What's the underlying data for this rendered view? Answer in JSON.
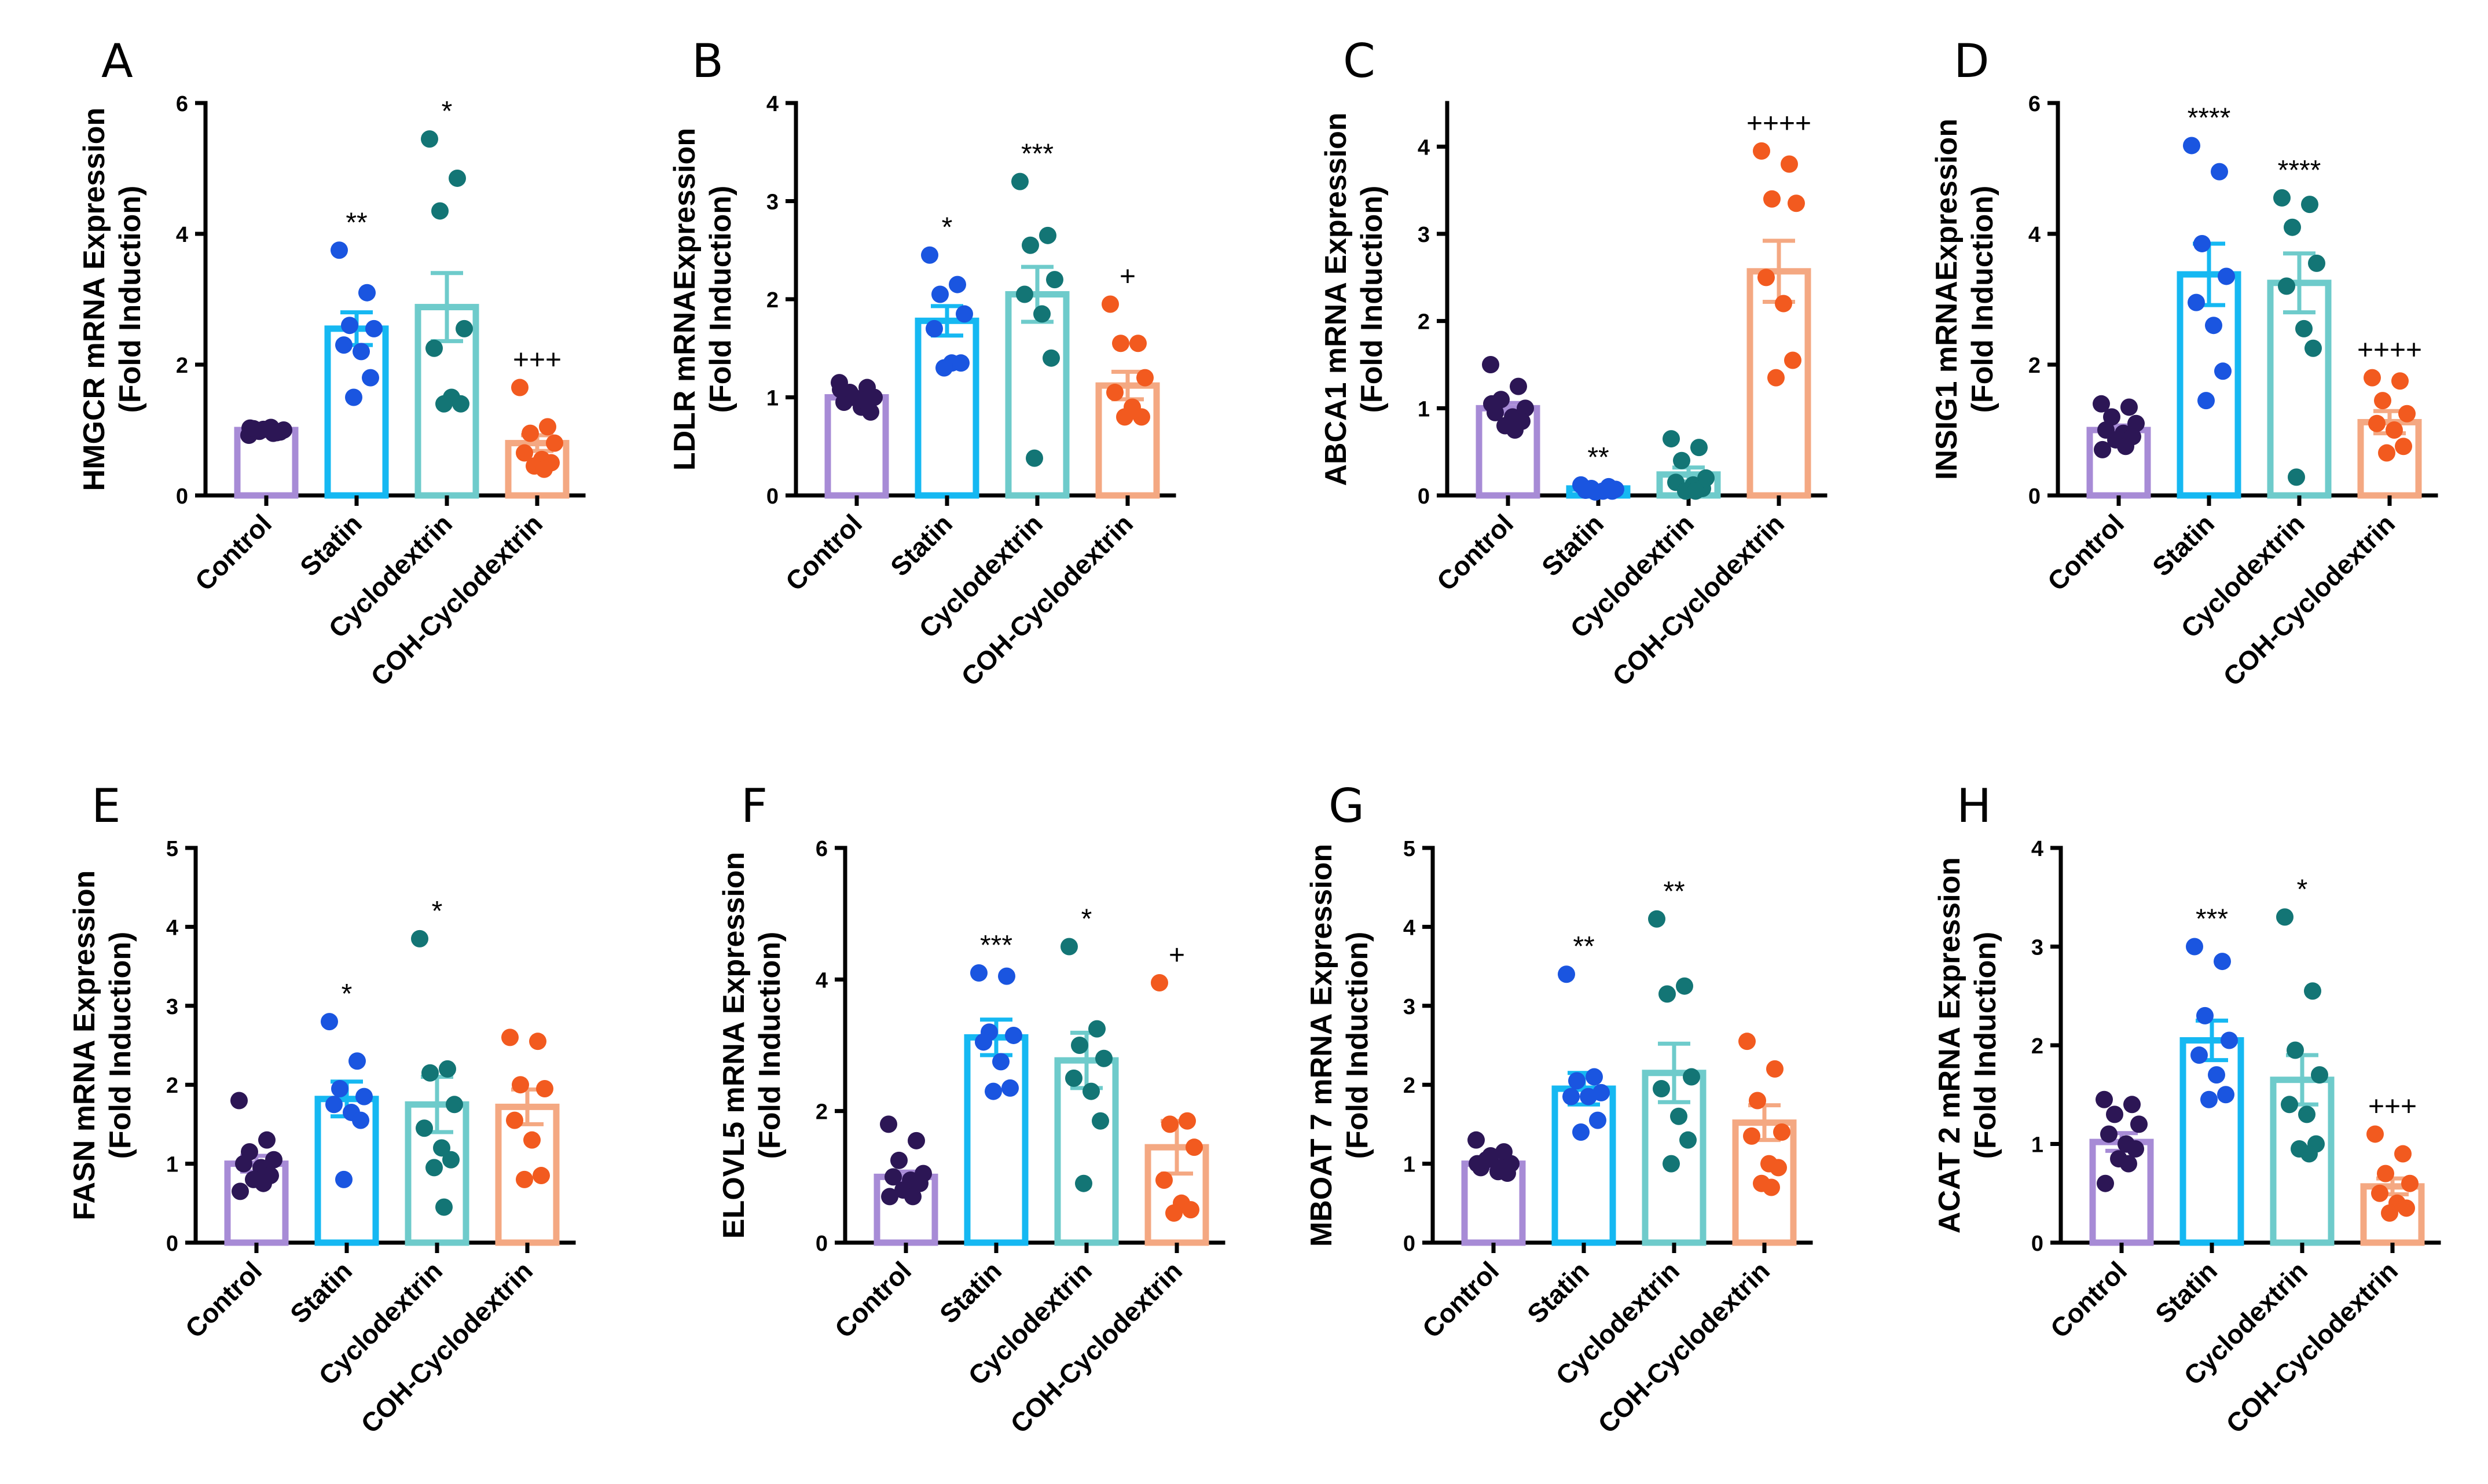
{
  "colors": {
    "bar": [
      "#a78bd6",
      "#15b8f2",
      "#6ecbcb",
      "#f4a882"
    ],
    "dot": [
      "#2c1655",
      "#1a55e0",
      "#137575",
      "#f25a1f"
    ]
  },
  "chart_data": [
    {
      "type": "bar",
      "panel": "A",
      "title": "",
      "xlabel": "",
      "ylabel": [
        "HMGCR  mRNA Expression",
        "(Fold Induction)"
      ],
      "ylim": [
        0,
        6
      ],
      "yticks": [
        "0",
        "2",
        "4",
        "6"
      ],
      "categories": [
        "Control",
        "Statin",
        "Cyclodextrin",
        "COH-Cyclodextrin"
      ],
      "values": [
        1.0,
        2.55,
        2.88,
        0.8
      ],
      "sem": [
        0.03,
        0.25,
        0.52,
        0.12
      ],
      "points": [
        [
          0.92,
          0.96,
          0.98,
          1.0,
          1.02,
          1.04,
          0.97,
          1.01,
          0.95,
          1.03
        ],
        [
          3.75,
          3.1,
          2.6,
          2.55,
          2.3,
          2.2,
          1.8,
          1.5
        ],
        [
          5.45,
          4.85,
          4.35,
          2.55,
          2.25,
          1.5,
          1.4,
          1.4
        ],
        [
          1.65,
          1.05,
          0.95,
          0.8,
          0.65,
          0.55,
          0.5,
          0.45,
          0.4
        ]
      ],
      "annotations": [
        "",
        "**",
        "*",
        "+++"
      ]
    },
    {
      "type": "bar",
      "panel": "B",
      "title": "",
      "xlabel": "",
      "ylabel": [
        "LDLR mRNAExpression",
        "(Fold Induction)"
      ],
      "ylim": [
        0,
        4
      ],
      "yticks": [
        "0",
        "1",
        "2",
        "3",
        "4"
      ],
      "categories": [
        "Control",
        "Statin",
        "Cyclodextrin",
        "COH-Cyclodextrin"
      ],
      "values": [
        1.0,
        1.78,
        2.05,
        1.12
      ],
      "sem": [
        0.05,
        0.15,
        0.28,
        0.14
      ],
      "points": [
        [
          1.15,
          1.1,
          1.05,
          1.0,
          0.95,
          0.9,
          0.85,
          1.0,
          0.97,
          1.08
        ],
        [
          2.45,
          2.15,
          2.05,
          1.85,
          1.7,
          1.35,
          1.35,
          1.3
        ],
        [
          3.2,
          2.65,
          2.55,
          2.2,
          2.05,
          1.85,
          1.4,
          0.38
        ],
        [
          1.95,
          1.55,
          1.55,
          1.2,
          1.05,
          0.9,
          0.8,
          0.8
        ]
      ],
      "annotations": [
        "",
        "*",
        "***",
        "+"
      ]
    },
    {
      "type": "bar",
      "panel": "C",
      "title": "",
      "xlabel": "",
      "ylabel": [
        "ABCA1 mRNA Expression",
        "(Fold Induction)"
      ],
      "ylim": [
        0,
        4.5
      ],
      "yticks": [
        "0",
        "1",
        "2",
        "3",
        "4"
      ],
      "categories": [
        "Control",
        "Statin",
        "Cyclodextrin",
        "COH-Cyclodextrin"
      ],
      "values": [
        1.0,
        0.08,
        0.24,
        2.57
      ],
      "sem": [
        0.06,
        0.02,
        0.08,
        0.35
      ],
      "points": [
        [
          1.5,
          1.25,
          1.1,
          1.0,
          0.95,
          0.9,
          0.85,
          0.8,
          0.75,
          1.05
        ],
        [
          0.12,
          0.1,
          0.08,
          0.07,
          0.06,
          0.05,
          0.05,
          0.04
        ],
        [
          0.65,
          0.55,
          0.4,
          0.2,
          0.15,
          0.12,
          0.08,
          0.05,
          0.05
        ],
        [
          3.95,
          3.8,
          3.4,
          3.35,
          2.5,
          2.2,
          1.55,
          1.35
        ]
      ],
      "annotations": [
        "",
        "**",
        "",
        "++++"
      ]
    },
    {
      "type": "bar",
      "panel": "D",
      "title": "",
      "xlabel": "",
      "ylabel": [
        "INSIG1 mRNAExpression",
        "(Fold Induction)"
      ],
      "ylim": [
        0,
        6
      ],
      "yticks": [
        "0",
        "2",
        "4",
        "6"
      ],
      "categories": [
        "Control",
        "Statin",
        "Cyclodextrin",
        "COH-Cyclodextrin"
      ],
      "values": [
        1.0,
        3.38,
        3.25,
        1.12
      ],
      "sem": [
        0.07,
        0.47,
        0.45,
        0.17
      ],
      "points": [
        [
          1.4,
          1.35,
          1.2,
          1.1,
          1.0,
          0.95,
          0.9,
          0.85,
          0.75,
          0.7
        ],
        [
          5.35,
          4.95,
          3.85,
          3.35,
          2.95,
          2.6,
          1.9,
          1.45
        ],
        [
          4.55,
          4.45,
          4.1,
          3.55,
          3.2,
          2.55,
          2.25,
          0.28
        ],
        [
          1.8,
          1.75,
          1.45,
          1.25,
          1.1,
          1.0,
          0.75,
          0.65
        ]
      ],
      "annotations": [
        "",
        "****",
        "****",
        "++++"
      ]
    },
    {
      "type": "bar",
      "panel": "E",
      "title": "",
      "xlabel": "",
      "ylabel": [
        "FASN  mRNA Expression",
        "(Fold Induction)"
      ],
      "ylim": [
        0,
        5
      ],
      "yticks": [
        "0",
        "1",
        "2",
        "3",
        "4",
        "5"
      ],
      "categories": [
        "Control",
        "Statin",
        "Cyclodextrin",
        "COH-Cyclodextrin"
      ],
      "values": [
        1.0,
        1.82,
        1.75,
        1.72
      ],
      "sem": [
        0.1,
        0.22,
        0.35,
        0.22
      ],
      "points": [
        [
          1.8,
          1.3,
          1.15,
          1.05,
          1.0,
          0.95,
          0.85,
          0.8,
          0.75,
          0.65
        ],
        [
          2.8,
          2.3,
          1.95,
          1.85,
          1.75,
          1.65,
          1.55,
          0.8
        ],
        [
          3.85,
          2.2,
          2.15,
          1.75,
          1.45,
          1.2,
          1.05,
          0.95,
          0.45
        ],
        [
          2.6,
          2.55,
          2.0,
          1.95,
          1.55,
          1.3,
          0.85,
          0.8
        ]
      ],
      "annotations": [
        "",
        "*",
        "*",
        ""
      ]
    },
    {
      "type": "bar",
      "panel": "F",
      "title": "",
      "xlabel": "",
      "ylabel": [
        "ELOVL5 mRNA Expression",
        "(Fold Induction)"
      ],
      "ylim": [
        0,
        6
      ],
      "yticks": [
        "0",
        "2",
        "4",
        "6"
      ],
      "categories": [
        "Control",
        "Statin",
        "Cyclodextrin",
        "COH-Cyclodextrin"
      ],
      "values": [
        1.0,
        3.12,
        2.77,
        1.45
      ],
      "sem": [
        0.08,
        0.27,
        0.42,
        0.4
      ],
      "points": [
        [
          1.8,
          1.55,
          1.25,
          1.05,
          1.0,
          0.95,
          0.9,
          0.8,
          0.7,
          0.7
        ],
        [
          4.1,
          4.05,
          3.2,
          3.15,
          3.05,
          2.75,
          2.35,
          2.3
        ],
        [
          4.5,
          3.25,
          3.0,
          2.8,
          2.5,
          2.3,
          1.85,
          0.9
        ],
        [
          3.95,
          1.85,
          1.8,
          1.45,
          0.95,
          0.6,
          0.5,
          0.45
        ]
      ],
      "annotations": [
        "",
        "***",
        "*",
        "+"
      ]
    },
    {
      "type": "bar",
      "panel": "G",
      "title": "",
      "xlabel": "",
      "ylabel": [
        "MBOAT 7 mRNA Expression",
        "(Fold Induction)"
      ],
      "ylim": [
        0,
        5
      ],
      "yticks": [
        "0",
        "1",
        "2",
        "3",
        "4",
        "5"
      ],
      "categories": [
        "Control",
        "Statin",
        "Cyclodextrin",
        "COH-Cyclodextrin"
      ],
      "values": [
        1.0,
        1.95,
        2.15,
        1.52
      ],
      "sem": [
        0.05,
        0.2,
        0.37,
        0.22
      ],
      "points": [
        [
          1.3,
          1.15,
          1.05,
          1.0,
          0.95,
          0.9,
          0.88,
          1.1,
          0.95,
          1.0
        ],
        [
          3.4,
          2.1,
          2.05,
          1.9,
          1.85,
          1.85,
          1.55,
          1.4
        ],
        [
          4.1,
          3.25,
          3.15,
          2.1,
          1.95,
          1.6,
          1.3,
          1.0
        ],
        [
          2.55,
          2.2,
          1.8,
          1.4,
          1.35,
          1.0,
          0.95,
          0.75,
          0.7
        ]
      ],
      "annotations": [
        "",
        "**",
        "**",
        ""
      ]
    },
    {
      "type": "bar",
      "panel": "H",
      "title": "",
      "xlabel": "",
      "ylabel": [
        "ACAT 2 mRNA Expression",
        "(Fold Induction)"
      ],
      "ylim": [
        0,
        4
      ],
      "yticks": [
        "0",
        "1",
        "2",
        "3",
        "4"
      ],
      "categories": [
        "Control",
        "Statin",
        "Cyclodextrin",
        "COH-Cyclodextrin"
      ],
      "values": [
        1.02,
        2.05,
        1.65,
        0.57
      ],
      "sem": [
        0.09,
        0.2,
        0.25,
        0.08
      ],
      "points": [
        [
          1.45,
          1.4,
          1.3,
          1.2,
          1.1,
          1.0,
          0.95,
          0.85,
          0.8,
          0.6
        ],
        [
          3.0,
          2.85,
          2.3,
          2.05,
          1.9,
          1.7,
          1.5,
          1.45
        ],
        [
          3.3,
          2.55,
          1.95,
          1.7,
          1.4,
          1.3,
          1.0,
          0.95,
          0.9
        ],
        [
          1.1,
          0.9,
          0.7,
          0.6,
          0.5,
          0.4,
          0.35,
          0.3
        ]
      ],
      "annotations": [
        "",
        "***",
        "*",
        "+++"
      ]
    }
  ]
}
